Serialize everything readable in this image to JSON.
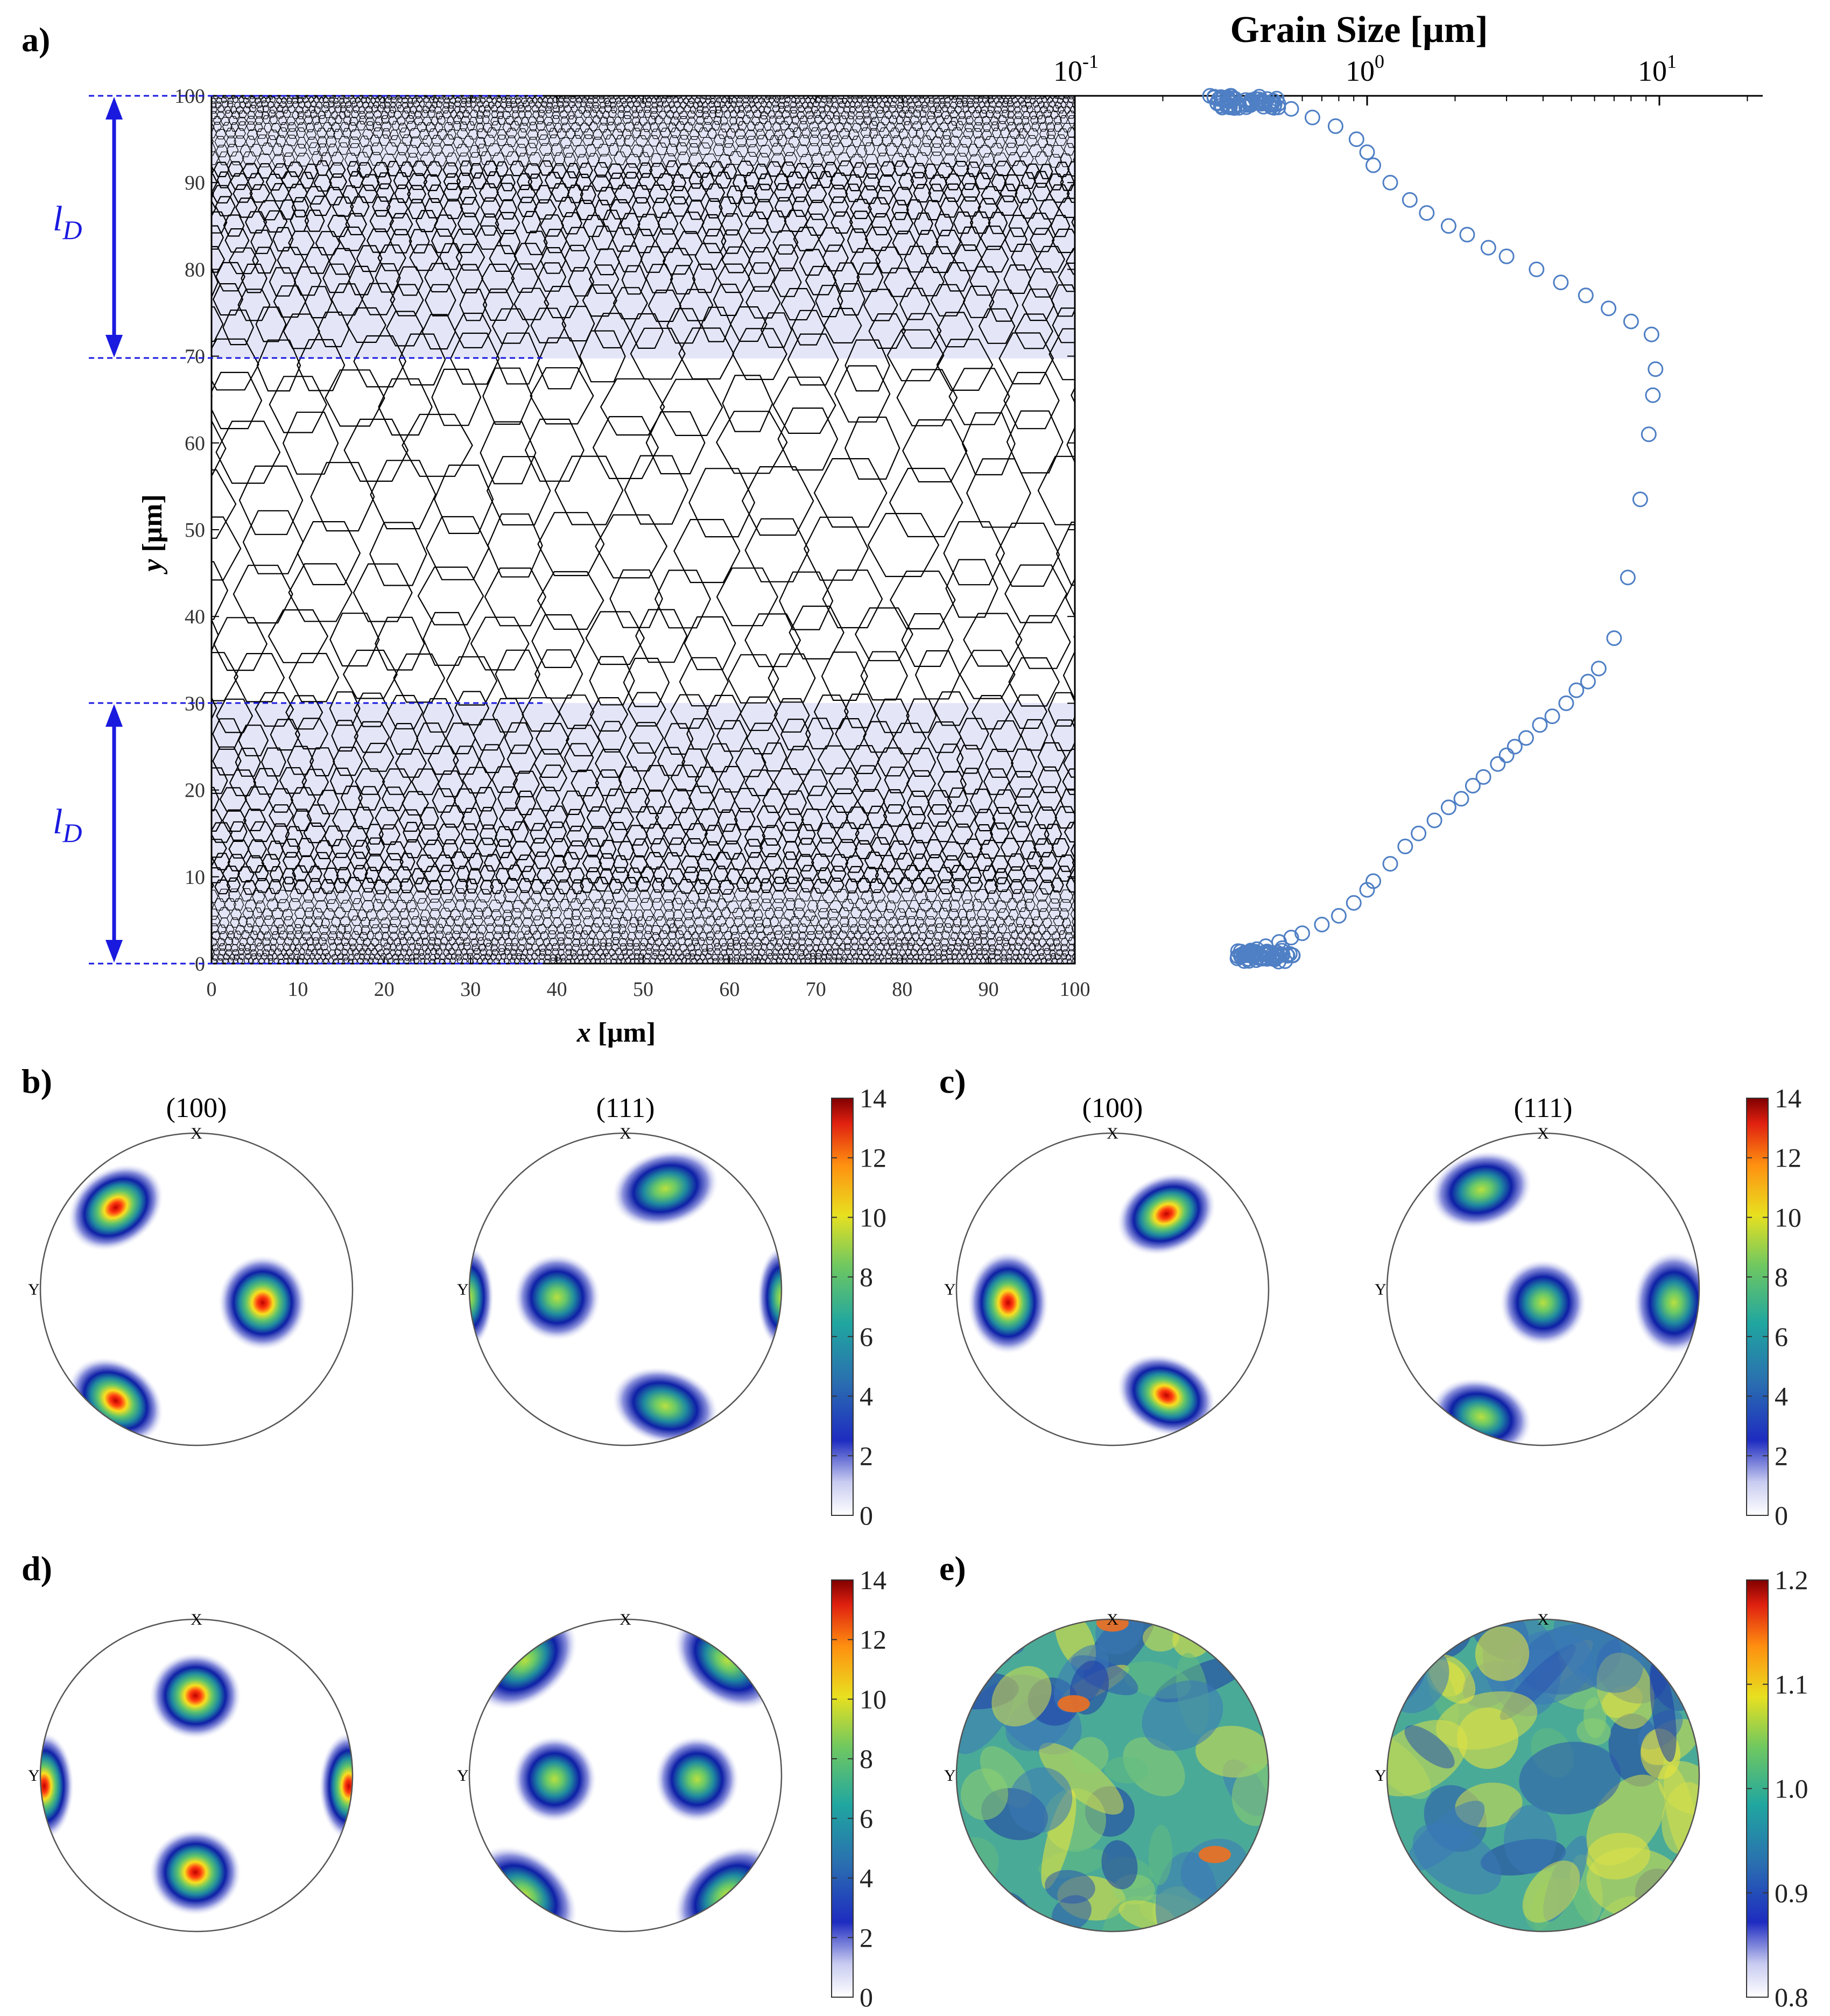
{
  "panels": {
    "a": {
      "label": "a)"
    },
    "b": {
      "label": "b)"
    },
    "c": {
      "label": "c)"
    },
    "d": {
      "label": "d)"
    },
    "e": {
      "label": "e)"
    }
  },
  "grain_map": {
    "xlabel_var": "x",
    "xlabel_unit": "[μm]",
    "ylabel_var": "y",
    "ylabel_unit": "[μm]",
    "x_ticks": [
      "0",
      "10",
      "20",
      "30",
      "40",
      "50",
      "60",
      "70",
      "80",
      "90",
      "100"
    ],
    "y_ticks": [
      "0",
      "10",
      "20",
      "30",
      "40",
      "50",
      "60",
      "70",
      "80",
      "90",
      "100"
    ],
    "ld_label_main": "l",
    "ld_label_sub": "D",
    "gradient_zone_color": "#e4e6f8",
    "marker_color": "#1a1adf"
  },
  "grain_size": {
    "title": "Grain Size [μm]",
    "tick_base": "10",
    "tick_exponents": [
      "-1",
      "0",
      "1"
    ],
    "marker_color": "#4f7fc4"
  },
  "pole_figures": {
    "titles": {
      "p100": "(100)",
      "p111": "(111)"
    },
    "dir_x": "X",
    "dir_y": "Y",
    "colorbar_ticks_bcd": [
      "0",
      "2",
      "4",
      "6",
      "8",
      "10",
      "12",
      "14"
    ],
    "colorbar_ticks_e": [
      "0.8",
      "0.9",
      "1.0",
      "1.1",
      "1.2"
    ]
  },
  "chart_data": [
    {
      "type": "scatter",
      "title": "Grain Size [μm]",
      "xlabel": "Grain Size [μm]",
      "ylabel": "y [μm]",
      "x_scale": "log",
      "xlim": [
        0.1,
        20
      ],
      "ylim": [
        0,
        100
      ],
      "series": [
        {
          "x": [
            0.38,
            0.36,
            0.37,
            0.4,
            0.45,
            0.5,
            0.55,
            0.6,
            0.7,
            0.8,
            0.9,
            1.0,
            1.05,
            1.2,
            1.35,
            1.5,
            1.7,
            1.9,
            2.1,
            2.3,
            2.5,
            2.8,
            3.0,
            3.2,
            3.5,
            3.9,
            4.3,
            4.8,
            5.2,
            5.7,
            6.2,
            7.0,
            7.8,
            8.6,
            9.2,
            9.5,
            9.7,
            9.4,
            8.0,
            6.7,
            5.6,
            4.6,
            3.8,
            3.0,
            2.6,
            2.2,
            1.9,
            1.6,
            1.4,
            1.2,
            1.05,
            1.0,
            0.92,
            0.78,
            0.65,
            0.55,
            0.46,
            0.4,
            0.35,
            0.3,
            0.29,
            0.3
          ],
          "y": [
            0.3,
            0.6,
            1.0,
            1.5,
            2.0,
            2.5,
            3.0,
            3.5,
            4.5,
            5.5,
            7.0,
            8.5,
            9.5,
            11.5,
            13.5,
            15.0,
            16.5,
            18.0,
            19.0,
            20.5,
            21.5,
            23.0,
            24.0,
            25.0,
            26.0,
            27.5,
            28.5,
            30.0,
            31.5,
            32.5,
            34.0,
            37.5,
            44.5,
            53.5,
            61.0,
            65.5,
            68.5,
            72.5,
            74.0,
            75.5,
            77.0,
            78.5,
            80.0,
            81.5,
            82.5,
            84.0,
            85.0,
            86.5,
            88.0,
            90.0,
            92.0,
            93.5,
            95.0,
            96.5,
            97.5,
            98.5,
            99.0,
            99.5,
            99.7,
            99.9,
            100.0,
            99.8
          ]
        }
      ]
    }
  ]
}
